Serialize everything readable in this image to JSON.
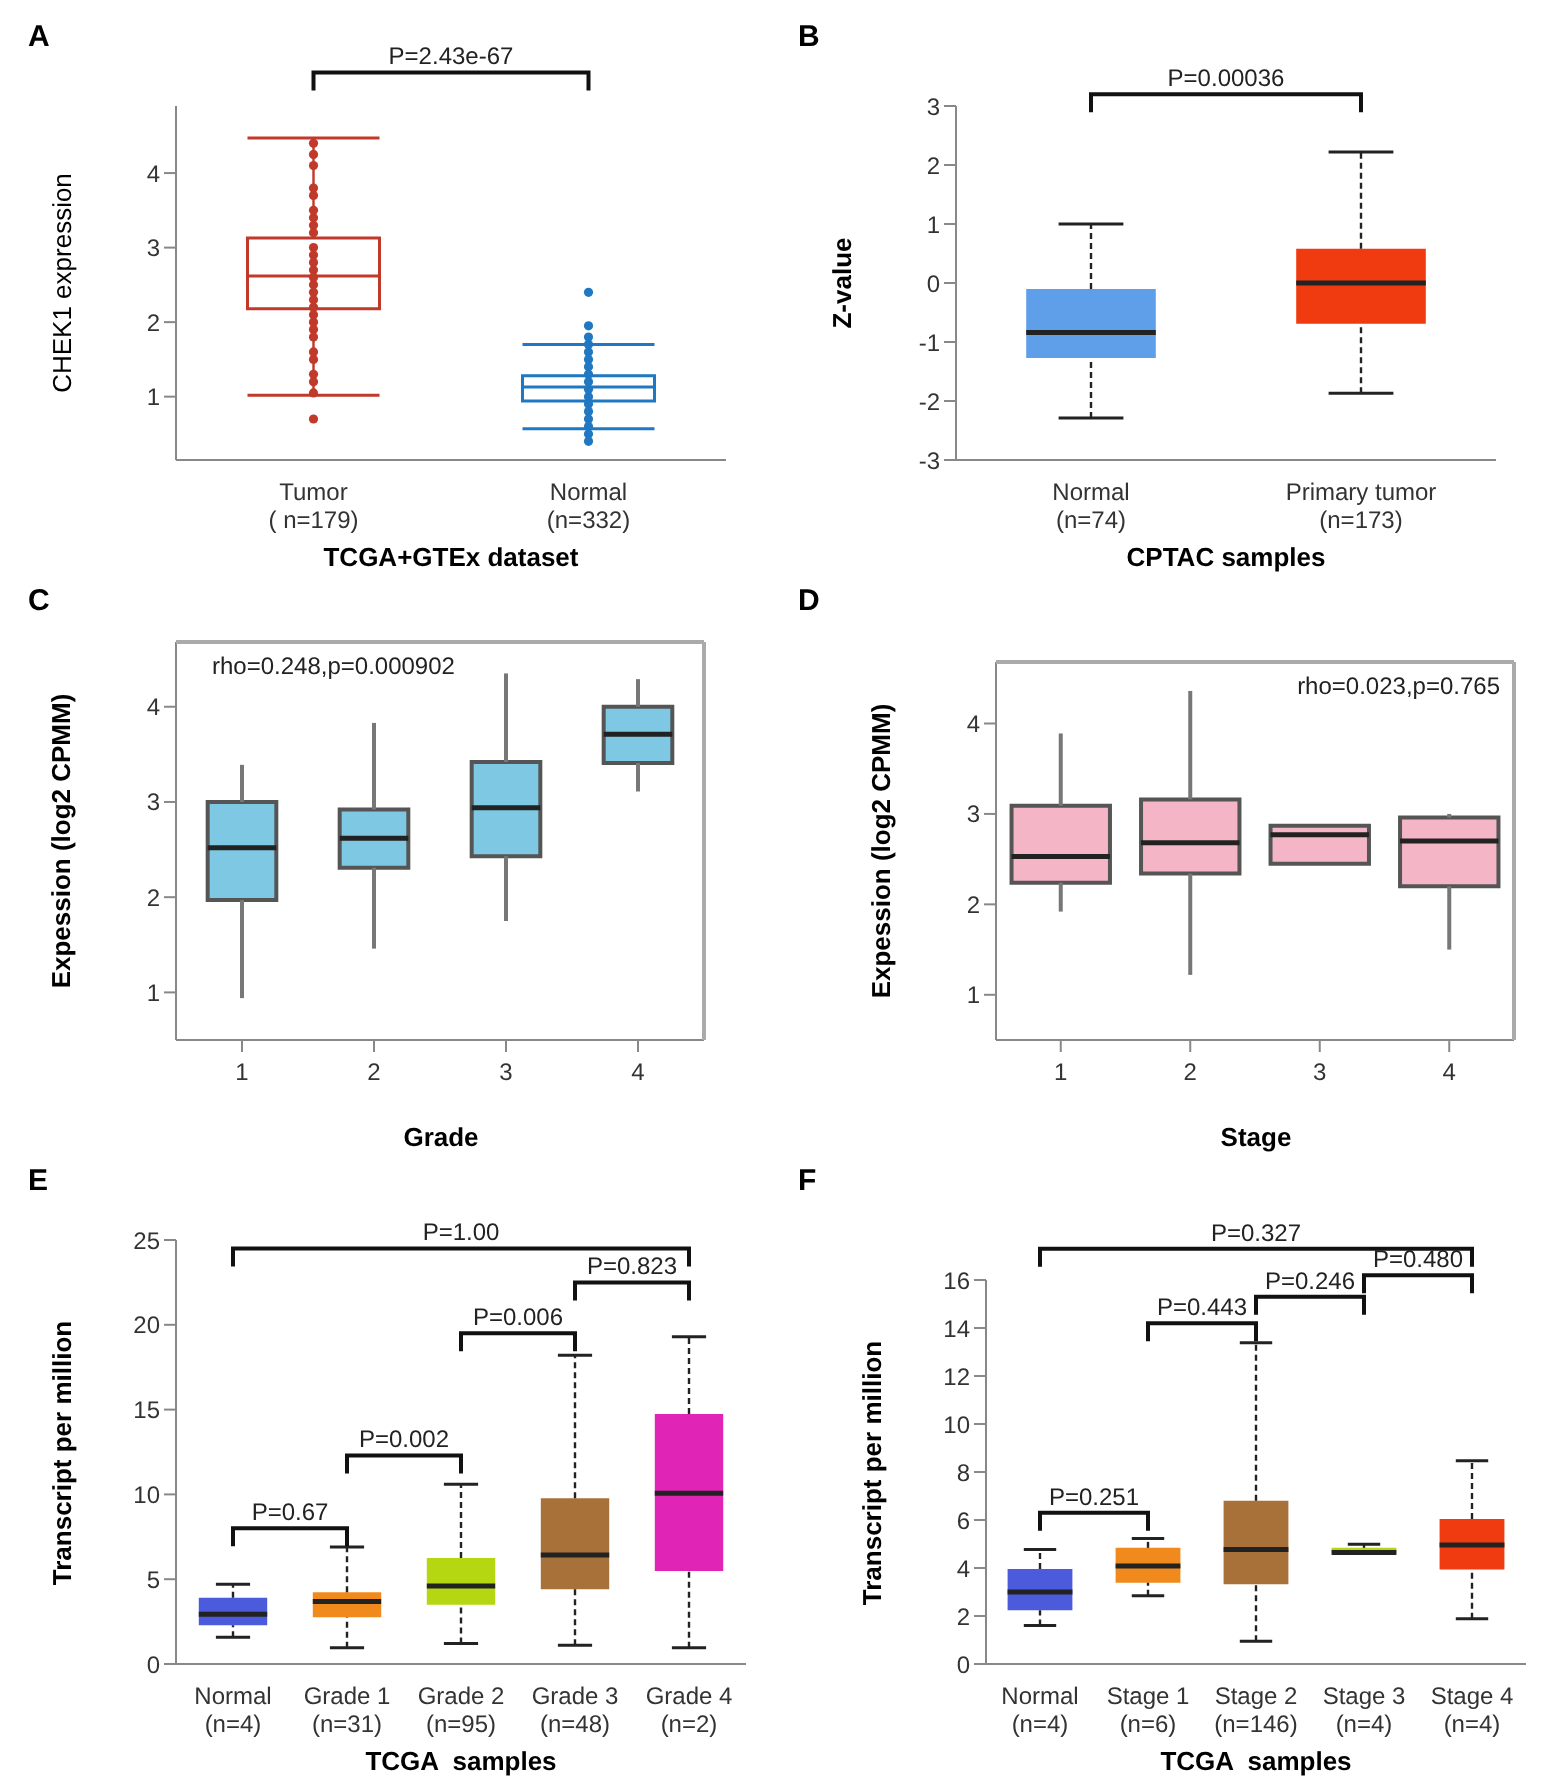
{
  "chart_data": [
    {
      "type": "box",
      "title": "A",
      "xlabel": "TCGA+GTEx dataset",
      "ylabel": "CHEK1 expression",
      "categories": [
        "Tumor\n( n=179)",
        "Normal\n(n=332)"
      ],
      "colors": [
        "#c0392b",
        "#1f78c1"
      ],
      "ylim": [
        0.15,
        4.9
      ],
      "yticks": [
        1,
        2,
        3,
        4
      ],
      "annotations": [
        "P=2.43e-67"
      ],
      "boxes": [
        {
          "low": 1.02,
          "q1": 2.18,
          "median": 2.62,
          "q3": 3.13,
          "high": 4.47
        },
        {
          "low": 0.57,
          "q1": 0.94,
          "median": 1.13,
          "q3": 1.28,
          "high": 1.7
        }
      ],
      "series": [
        {
          "type": "scatter",
          "color": "#c0392b",
          "x": [
            "Tumor\n( n=179)",
            "Tumor\n( n=179)",
            "Tumor\n( n=179)",
            "Tumor\n( n=179)",
            "Tumor\n( n=179)",
            "Tumor\n( n=179)",
            "Tumor\n( n=179)",
            "Tumor\n( n=179)",
            "Tumor\n( n=179)",
            "Tumor\n( n=179)",
            "Tumor\n( n=179)",
            "Tumor\n( n=179)",
            "Tumor\n( n=179)",
            "Tumor\n( n=179)",
            "Tumor\n( n=179)",
            "Tumor\n( n=179)",
            "Tumor\n( n=179)",
            "Tumor\n( n=179)",
            "Tumor\n( n=179)",
            "Tumor\n( n=179)",
            "Tumor\n( n=179)",
            "Tumor\n( n=179)",
            "Tumor\n( n=179)",
            "Tumor\n( n=179)",
            "Tumor\n( n=179)",
            "Tumor\n( n=179)",
            "Tumor\n( n=179)",
            "Tumor\n( n=179)"
          ],
          "values": [
            4.4,
            4.25,
            4.1,
            3.8,
            3.7,
            3.5,
            3.4,
            3.3,
            3.2,
            3.0,
            2.9,
            2.8,
            2.7,
            2.6,
            2.5,
            2.4,
            2.3,
            2.2,
            2.1,
            2.0,
            1.9,
            1.8,
            1.6,
            1.5,
            1.3,
            1.2,
            1.05,
            0.7
          ]
        },
        {
          "type": "scatter",
          "color": "#1f78c1",
          "x": [
            "Normal\n(n=332)",
            "Normal\n(n=332)",
            "Normal\n(n=332)",
            "Normal\n(n=332)",
            "Normal\n(n=332)",
            "Normal\n(n=332)",
            "Normal\n(n=332)",
            "Normal\n(n=332)",
            "Normal\n(n=332)",
            "Normal\n(n=332)",
            "Normal\n(n=332)",
            "Normal\n(n=332)",
            "Normal\n(n=332)",
            "Normal\n(n=332)",
            "Normal\n(n=332)",
            "Normal\n(n=332)",
            "Normal\n(n=332)"
          ],
          "values": [
            2.4,
            1.95,
            1.8,
            1.7,
            1.6,
            1.5,
            1.4,
            1.3,
            1.2,
            1.1,
            1.0,
            0.9,
            0.8,
            0.7,
            0.6,
            0.5,
            0.4
          ]
        }
      ]
    },
    {
      "type": "box",
      "title": "B",
      "xlabel": "CPTAC samples",
      "ylabel": "Z-value",
      "categories": [
        "Normal\n(n=74)",
        "Primary tumor\n(n=173)"
      ],
      "colors": [
        "#5f9ee8",
        "#f03a10"
      ],
      "ylim": [
        -3,
        3
      ],
      "yticks": [
        -3,
        -2,
        -1,
        0,
        1,
        2,
        3
      ],
      "annotations": [
        "P=0.00036"
      ],
      "boxes": [
        {
          "low": -2.29,
          "q1": -1.27,
          "median": -0.84,
          "q3": -0.1,
          "high": 1.0
        },
        {
          "low": -1.87,
          "q1": -0.69,
          "median": 0,
          "q3": 0.58,
          "high": 2.22
        }
      ]
    },
    {
      "type": "box",
      "title": "C",
      "xlabel": "Grade",
      "ylabel": "Expession (log2 CPMM)",
      "categories": [
        "1",
        "2",
        "3",
        "4"
      ],
      "colors": [
        "#7ec8e3",
        "#7ec8e3",
        "#7ec8e3",
        "#7ec8e3"
      ],
      "ylim": [
        0.5,
        4.68
      ],
      "yticks": [
        1,
        2,
        3,
        4
      ],
      "annotations": [
        "rho=0.248,p=0.000902"
      ],
      "boxes": [
        {
          "low": 0.94,
          "q1": 1.97,
          "median": 2.52,
          "q3": 3.0,
          "high": 3.39
        },
        {
          "low": 1.46,
          "q1": 2.31,
          "median": 2.62,
          "q3": 2.92,
          "high": 3.83
        },
        {
          "low": 1.75,
          "q1": 2.43,
          "median": 2.94,
          "q3": 3.42,
          "high": 4.35
        },
        {
          "low": 3.11,
          "q1": 3.41,
          "median": 3.71,
          "q3": 4.0,
          "high": 4.29
        }
      ]
    },
    {
      "type": "box",
      "title": "D",
      "xlabel": "Stage",
      "ylabel": "Expession (log2 CPMM)",
      "categories": [
        "1",
        "2",
        "3",
        "4"
      ],
      "colors": [
        "#f4b6c6",
        "#f4b6c6",
        "#f4b6c6",
        "#f4b6c6"
      ],
      "ylim": [
        0.5,
        4.68
      ],
      "yticks": [
        1,
        2,
        3,
        4
      ],
      "annotations": [
        "rho=0.023,p=0.765"
      ],
      "boxes": [
        {
          "low": 1.92,
          "q1": 2.24,
          "median": 2.53,
          "q3": 3.09,
          "high": 3.89
        },
        {
          "low": 1.22,
          "q1": 2.34,
          "median": 2.68,
          "q3": 3.16,
          "high": 4.36
        },
        {
          "low": 2.45,
          "q1": 2.45,
          "median": 2.77,
          "q3": 2.87,
          "high": 2.87
        },
        {
          "low": 1.5,
          "q1": 2.2,
          "median": 2.7,
          "q3": 2.96,
          "high": 3.0
        }
      ]
    },
    {
      "type": "box",
      "title": "E",
      "xlabel": "TCGA  samples",
      "ylabel": "Transcript  per million",
      "categories": [
        "Normal\n(n=4)",
        "Grade 1\n(n=31)",
        "Grade 2\n(n=95)",
        "Grade 3\n(n=48)",
        "Grade 4\n(n=2)"
      ],
      "colors": [
        "#4b5bdc",
        "#f08a1c",
        "#b5d712",
        "#a8713a",
        "#e025b6"
      ],
      "ylim": [
        0,
        25
      ],
      "yticks": [
        0,
        5,
        10,
        15,
        20,
        25
      ],
      "annotations": [
        "P=0.67",
        "P=0.002",
        "P=0.006",
        "P=0.823",
        "P=1.00"
      ],
      "boxes": [
        {
          "low": 1.58,
          "q1": 2.28,
          "median": 2.94,
          "q3": 3.9,
          "high": 4.7
        },
        {
          "low": 0.96,
          "q1": 2.76,
          "median": 3.68,
          "q3": 4.23,
          "high": 6.9
        },
        {
          "low": 1.21,
          "q1": 3.49,
          "median": 4.6,
          "q3": 6.25,
          "high": 10.6
        },
        {
          "low": 1.1,
          "q1": 4.41,
          "median": 6.43,
          "q3": 9.78,
          "high": 18.2
        },
        {
          "low": 0.96,
          "q1": 5.48,
          "median": 10.07,
          "q3": 14.74,
          "high": 19.3
        }
      ]
    },
    {
      "type": "box",
      "title": "F",
      "xlabel": "TCGA  samples",
      "ylabel": "Transcript  per million",
      "categories": [
        "Normal\n(n=4)",
        "Stage 1\n(n=6)",
        "Stage 2\n(n=146)",
        "Stage 3\n(n=4)",
        "Stage 4\n(n=4)"
      ],
      "colors": [
        "#4b5bdc",
        "#f08a1c",
        "#a8713a",
        "#b5d712",
        "#f03a10"
      ],
      "ylim": [
        0,
        16
      ],
      "yticks": [
        0,
        2,
        4,
        6,
        8,
        10,
        12,
        14,
        16
      ],
      "annotations": [
        "P=0.251",
        "P=0.443",
        "P=0.246",
        "P=0.480",
        "P=0.327"
      ],
      "boxes": [
        {
          "low": 1.6,
          "q1": 2.24,
          "median": 3.0,
          "q3": 3.96,
          "high": 4.77
        },
        {
          "low": 2.84,
          "q1": 3.39,
          "median": 4.08,
          "q3": 4.84,
          "high": 5.23
        },
        {
          "low": 0.95,
          "q1": 3.32,
          "median": 4.77,
          "q3": 6.8,
          "high": 13.39
        },
        {
          "low": 4.61,
          "q1": 4.61,
          "median": 4.65,
          "q3": 4.84,
          "high": 4.99
        },
        {
          "low": 1.89,
          "q1": 3.94,
          "median": 4.96,
          "q3": 6.04,
          "high": 8.47
        }
      ]
    }
  ]
}
